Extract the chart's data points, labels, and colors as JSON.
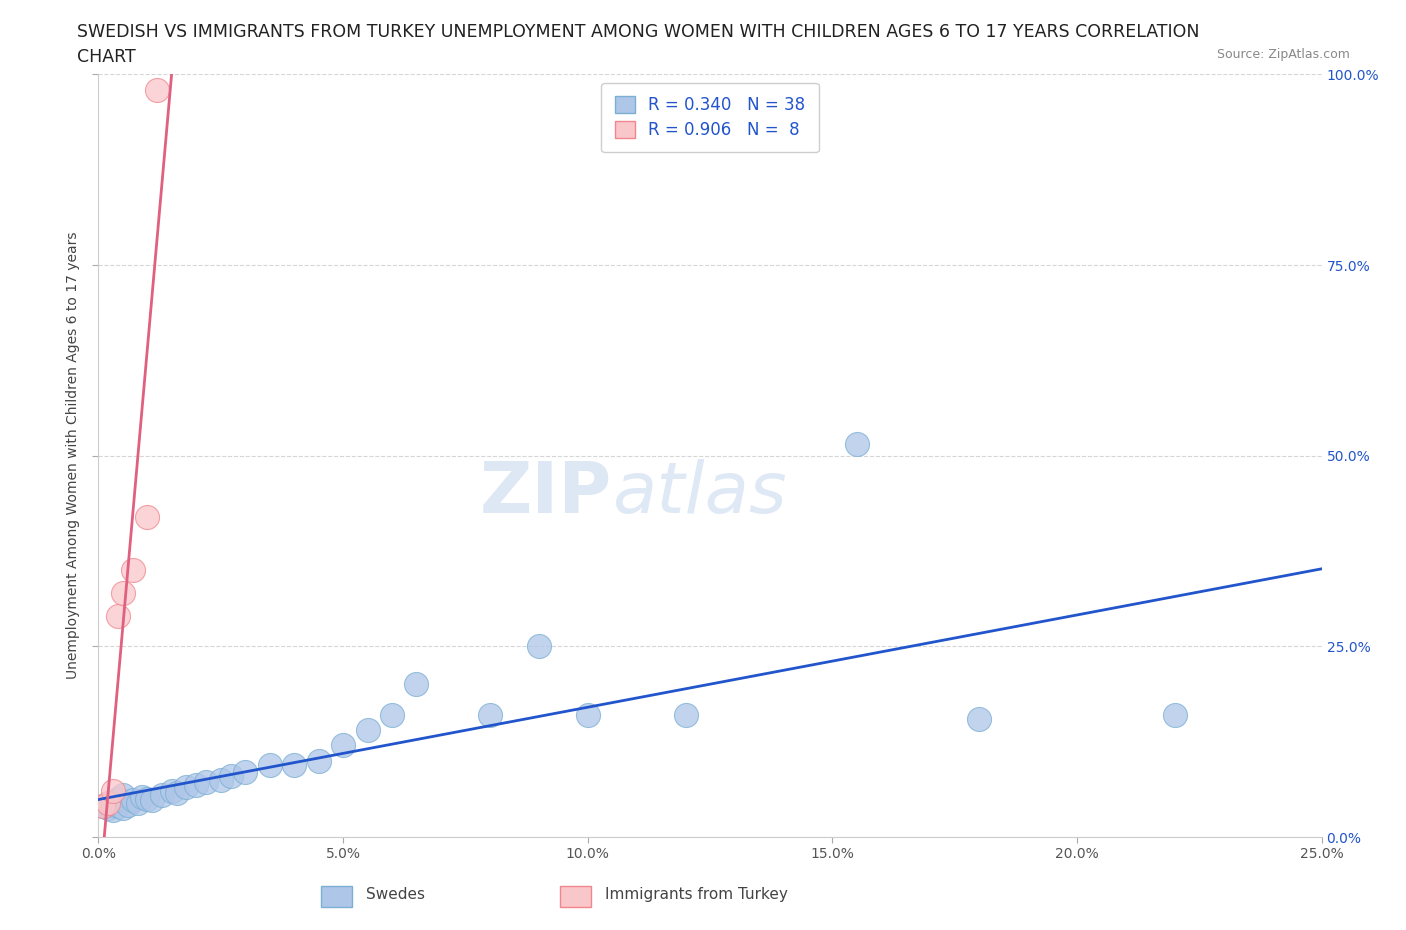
{
  "title_line1": "SWEDISH VS IMMIGRANTS FROM TURKEY UNEMPLOYMENT AMONG WOMEN WITH CHILDREN AGES 6 TO 17 YEARS CORRELATION",
  "title_line2": "CHART",
  "source_text": "Source: ZipAtlas.com",
  "ylabel": "Unemployment Among Women with Children Ages 6 to 17 years",
  "xlabel_ticks": [
    "0.0%",
    "5.0%",
    "10.0%",
    "15.0%",
    "20.0%",
    "25.0%"
  ],
  "ylabel_right_ticks": [
    "100.0%",
    "75.0%",
    "50.0%",
    "25.0%",
    "0.0%"
  ],
  "xlim": [
    0,
    0.25
  ],
  "ylim": [
    0,
    1.0
  ],
  "swedes_x": [
    0.001,
    0.002,
    0.002,
    0.003,
    0.003,
    0.004,
    0.004,
    0.005,
    0.005,
    0.006,
    0.007,
    0.008,
    0.009,
    0.01,
    0.011,
    0.013,
    0.015,
    0.016,
    0.018,
    0.02,
    0.022,
    0.025,
    0.027,
    0.03,
    0.035,
    0.04,
    0.045,
    0.05,
    0.055,
    0.06,
    0.065,
    0.08,
    0.09,
    0.1,
    0.12,
    0.155,
    0.18,
    0.22
  ],
  "swedes_y": [
    0.04,
    0.038,
    0.042,
    0.035,
    0.045,
    0.04,
    0.05,
    0.038,
    0.055,
    0.042,
    0.048,
    0.045,
    0.052,
    0.05,
    0.048,
    0.055,
    0.06,
    0.058,
    0.065,
    0.068,
    0.072,
    0.075,
    0.08,
    0.085,
    0.095,
    0.095,
    0.1,
    0.12,
    0.14,
    0.16,
    0.2,
    0.16,
    0.25,
    0.16,
    0.16,
    0.515,
    0.155,
    0.16
  ],
  "turkey_x": [
    0.001,
    0.002,
    0.003,
    0.004,
    0.005,
    0.007,
    0.01,
    0.012
  ],
  "turkey_y": [
    0.04,
    0.045,
    0.06,
    0.29,
    0.32,
    0.35,
    0.42,
    0.98
  ],
  "swedes_color": "#aec6e8",
  "swedes_edge_color": "#7bafd4",
  "turkey_color": "#f9c6c9",
  "turkey_edge_color": "#f0868e",
  "trend_blue": "#2255cc",
  "trend_pink": "#e06080",
  "legend_R_swedes": "R = 0.340",
  "legend_N_swedes": "N = 38",
  "legend_R_turkey": "R = 0.906",
  "legend_N_turkey": "N =  8",
  "watermark_zip": "ZIP",
  "watermark_atlas": "atlas",
  "title_fontsize": 12.5,
  "axis_label_fontsize": 10,
  "tick_fontsize": 10,
  "legend_fontsize": 12,
  "background_color": "#ffffff",
  "grid_color": "#cccccc",
  "legend_label_color": "#2255cc",
  "bottom_legend_swedes": "Swedes",
  "bottom_legend_turkey": "Immigrants from Turkey"
}
